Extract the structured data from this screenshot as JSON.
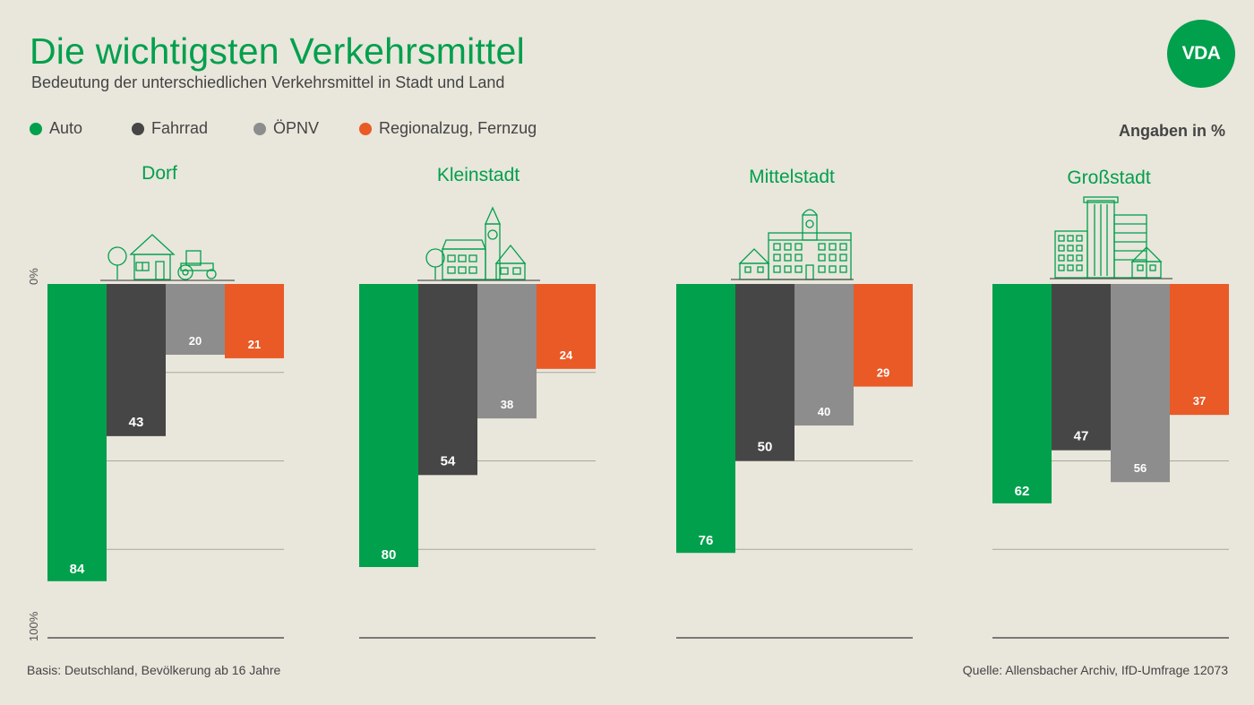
{
  "header": {
    "title": "Die wichtigsten Verkehrsmittel",
    "subtitle": "Bedeutung der unterschiedlichen Verkehrsmittel in Stadt und Land",
    "logo_text": "VDA",
    "unit_note": "Angaben in %"
  },
  "axis": {
    "top_label": "0%",
    "bottom_label": "100%"
  },
  "footer": {
    "basis": "Basis: Deutschland, Bevölkerung ab 16 Jahre",
    "source": "Quelle: Allensbacher Archiv, IfD-Umfrage 12073"
  },
  "colors": {
    "auto": "#00a04c",
    "fahrrad": "#464646",
    "oepnv": "#8d8d8d",
    "zug": "#e95a26",
    "accent": "#00a04c"
  },
  "chart_data": {
    "type": "bar",
    "orientation": "vertical-downward",
    "ylim": [
      0,
      100
    ],
    "title": "Die wichtigsten Verkehrsmittel",
    "subtitle": "Bedeutung der unterschiedlichen Verkehrsmittel in Stadt und Land",
    "legend": [
      "Auto",
      "Fahrrad",
      "ÖPNV",
      "Regionalzug, Fernzug"
    ],
    "legend_position": "top-left",
    "categories": [
      "Dorf",
      "Kleinstadt",
      "Mittelstadt",
      "Großstadt"
    ],
    "series": [
      {
        "name": "Auto",
        "values": [
          84,
          80,
          76,
          62
        ]
      },
      {
        "name": "Fahrrad",
        "values": [
          43,
          54,
          50,
          47
        ]
      },
      {
        "name": "ÖPNV",
        "values": [
          20,
          38,
          40,
          56
        ]
      },
      {
        "name": "Regionalzug, Fernzug",
        "values": [
          21,
          24,
          29,
          37
        ]
      }
    ],
    "icons": [
      "village-icon",
      "small-town-icon",
      "mid-town-icon",
      "city-icon"
    ]
  }
}
